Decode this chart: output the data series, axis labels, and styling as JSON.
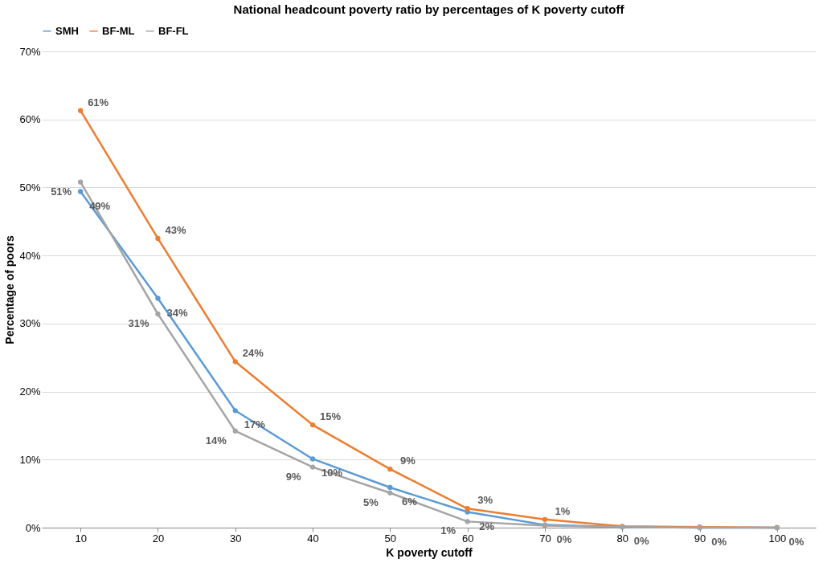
{
  "chart_data": {
    "type": "line",
    "title": "National headcount poverty ratio by percentages of K poverty cutoff",
    "xlabel": "K poverty cutoff",
    "ylabel": "Percentage of poors",
    "categories": [
      "10",
      "20",
      "30",
      "40",
      "50",
      "60",
      "70",
      "80",
      "90",
      "100"
    ],
    "series": [
      {
        "name": "SMH",
        "color": "#5b9bd5",
        "values": [
          49.4,
          33.7,
          17.2,
          10.1,
          5.9,
          2.3,
          0.4,
          0.1,
          0,
          0
        ],
        "value_labels": [
          "49%",
          "34%",
          "17%",
          "10%",
          "6%",
          "2%",
          "0%",
          "0%",
          "0%",
          "0%"
        ]
      },
      {
        "name": "BF-ML",
        "color": "#ed7d31",
        "values": [
          61.3,
          42.5,
          24.4,
          15.1,
          8.6,
          2.8,
          1.2,
          0.2,
          0.1,
          0
        ],
        "value_labels": [
          "61%",
          "43%",
          "24%",
          "15%",
          "9%",
          "3%",
          "1%",
          null,
          null,
          null
        ]
      },
      {
        "name": "BF-FL",
        "color": "#a5a5a5",
        "values": [
          50.8,
          31.4,
          14.2,
          8.9,
          5.1,
          0.9,
          0.3,
          0.1,
          0,
          0
        ],
        "value_labels": [
          "51%",
          "31%",
          "14%",
          "9%",
          "5%",
          "1%",
          null,
          null,
          null,
          null
        ]
      }
    ],
    "ylim": [
      0,
      70
    ],
    "yticks": [
      {
        "value": 0,
        "label": "0%"
      },
      {
        "value": 10,
        "label": "10%"
      },
      {
        "value": 20,
        "label": "20%"
      },
      {
        "value": 30,
        "label": "30%"
      },
      {
        "value": 40,
        "label": "40%"
      },
      {
        "value": 50,
        "label": "50%"
      },
      {
        "value": 60,
        "label": "60%"
      },
      {
        "value": 70,
        "label": "70%"
      }
    ],
    "grid": "y",
    "legend": "top",
    "marker": "circle",
    "line_style": "solid"
  }
}
